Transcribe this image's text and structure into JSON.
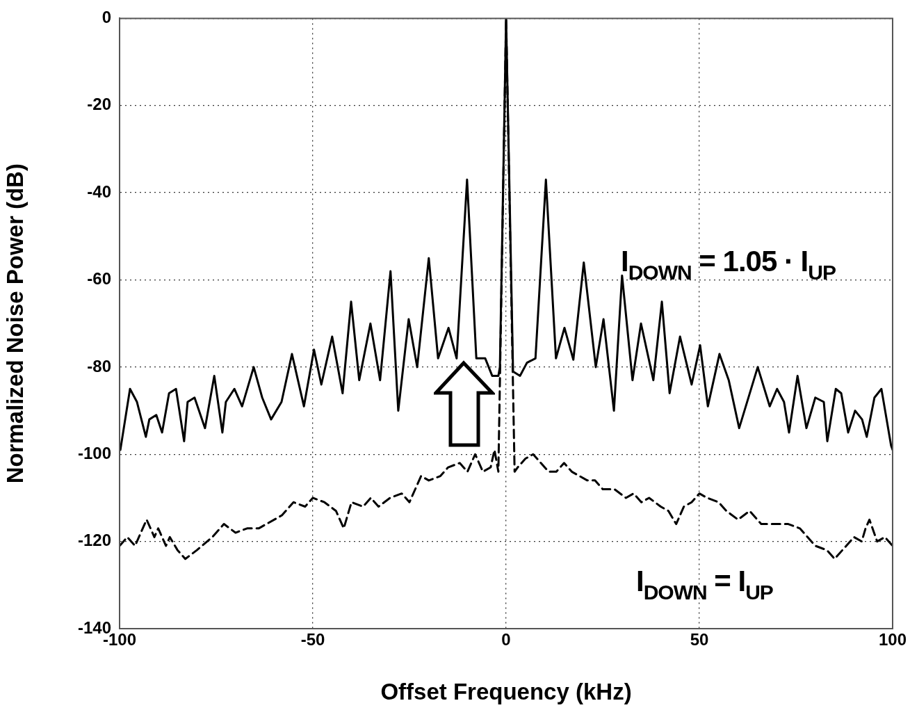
{
  "chart_data": {
    "type": "line",
    "xlabel": "Offset Frequency (kHz)",
    "ylabel": "Normalized Noise Power (dB)",
    "xlim": [
      -100,
      100
    ],
    "ylim": [
      -140,
      0
    ],
    "xticks": [
      -100,
      -50,
      0,
      50,
      100
    ],
    "yticks": [
      -140,
      -120,
      -100,
      -80,
      -60,
      -40,
      -20,
      0
    ],
    "grid": true,
    "series": [
      {
        "name": "I$_{DOWN}$ = 1.05 · I$_{UP}$",
        "color": "#000000",
        "line_style": "solid",
        "x": [
          -99.8,
          -97.3,
          -95.5,
          -93.2,
          -92.3,
          -90.5,
          -89.0,
          -87.2,
          -85.4,
          -83.3,
          -82.4,
          -80.6,
          -77.9,
          -75.5,
          -73.4,
          -72.5,
          -70.3,
          -68.3,
          -65.3,
          -63.1,
          -60.8,
          -58.1,
          -55.4,
          -52.3,
          -49.7,
          -47.8,
          -45.0,
          -42.3,
          -40.1,
          -38.0,
          -35.1,
          -32.6,
          -29.9,
          -27.9,
          -25.2,
          -23.0,
          -20.0,
          -17.6,
          -14.9,
          -12.8,
          -10.1,
          -7.7,
          -5.4,
          -3.6,
          -2.0,
          -1.6,
          0,
          1.8,
          3.6,
          5.4,
          7.6,
          10.3,
          12.9,
          15.1,
          17.4,
          20.1,
          23.2,
          25.2,
          27.9,
          30.0,
          32.7,
          34.9,
          38.1,
          40.3,
          42.3,
          45.0,
          48.0,
          50.2,
          52.2,
          55.2,
          57.6,
          60.3,
          65.1,
          68.2,
          70.1,
          71.9,
          73.2,
          75.4,
          77.7,
          80.0,
          82.2,
          83.1,
          85.3,
          86.7,
          88.5,
          90.3,
          92.1,
          93.3,
          95.3,
          97.1,
          99.6,
          100
        ],
        "values": [
          -99,
          -85,
          -88,
          -96,
          -92,
          -91,
          -95,
          -86,
          -85,
          -97,
          -88,
          -87,
          -94,
          -82,
          -95,
          -88,
          -85,
          -89,
          -80,
          -87,
          -92,
          -88,
          -77,
          -89,
          -76,
          -84,
          -73,
          -86,
          -65,
          -83,
          -70,
          -83,
          -58,
          -90,
          -69,
          -80,
          -55,
          -78,
          -71,
          -78,
          -37,
          -78,
          -78,
          -82,
          -82,
          -80,
          0,
          -81,
          -82,
          -79,
          -78,
          -37,
          -78,
          -71,
          -78.3,
          -56,
          -80,
          -69,
          -90,
          -59,
          -83,
          -70,
          -83,
          -65,
          -86,
          -73,
          -84,
          -75,
          -89,
          -77,
          -83,
          -94,
          -80,
          -89,
          -85,
          -88,
          -95,
          -82,
          -94,
          -87,
          -88,
          -97,
          -85,
          -86,
          -95,
          -90,
          -92,
          -96,
          -87,
          -85,
          -98,
          -99
        ]
      },
      {
        "name": "I$_{DOWN}$ = I$_{UP}$",
        "color": "#000000",
        "line_style": "dashed",
        "x": [
          -100,
          -98,
          -96,
          -95,
          -93,
          -91,
          -90,
          -88,
          -87,
          -85,
          -83,
          -80,
          -76,
          -73,
          -70,
          -67,
          -64,
          -62,
          -58,
          -55,
          -52,
          -50,
          -47,
          -44,
          -42,
          -40,
          -37,
          -35,
          -33,
          -30,
          -27,
          -25,
          -22,
          -20,
          -17,
          -15,
          -12,
          -10,
          -8,
          -6,
          -4,
          -3,
          -2,
          0,
          2.2,
          3,
          5,
          7,
          9,
          11,
          13,
          15,
          17,
          19,
          21,
          23,
          25,
          28,
          31,
          33,
          35,
          37,
          40,
          42,
          44,
          46,
          48,
          50,
          52,
          55,
          57,
          60,
          63,
          66,
          70,
          73,
          76,
          80,
          83,
          85,
          88,
          90,
          92,
          93,
          94,
          96,
          98,
          100
        ],
        "values": [
          -121,
          -119,
          -121,
          -119,
          -115,
          -119,
          -117,
          -121,
          -119,
          -122,
          -124,
          -122,
          -119,
          -116,
          -118,
          -117,
          -117,
          -116,
          -114,
          -111,
          -112,
          -110,
          -111,
          -113,
          -117,
          -111,
          -112,
          -110,
          -112,
          -110,
          -109,
          -111,
          -105,
          -106,
          -105,
          -103,
          -102,
          -104,
          -100,
          -104,
          -103,
          -99,
          -104,
          0,
          -104,
          -103,
          -101,
          -100,
          -102,
          -104,
          -104,
          -102,
          -104,
          -105,
          -106,
          -106,
          -108,
          -108,
          -110,
          -109,
          -111,
          -110,
          -112,
          -113,
          -116,
          -112,
          -111,
          -109,
          -110,
          -111,
          -113,
          -115,
          -113,
          -116,
          -116,
          -116,
          -117,
          -121,
          -122,
          -124,
          -121,
          -119,
          -120,
          -117,
          -115,
          -120,
          -119,
          -121
        ]
      }
    ]
  }
}
